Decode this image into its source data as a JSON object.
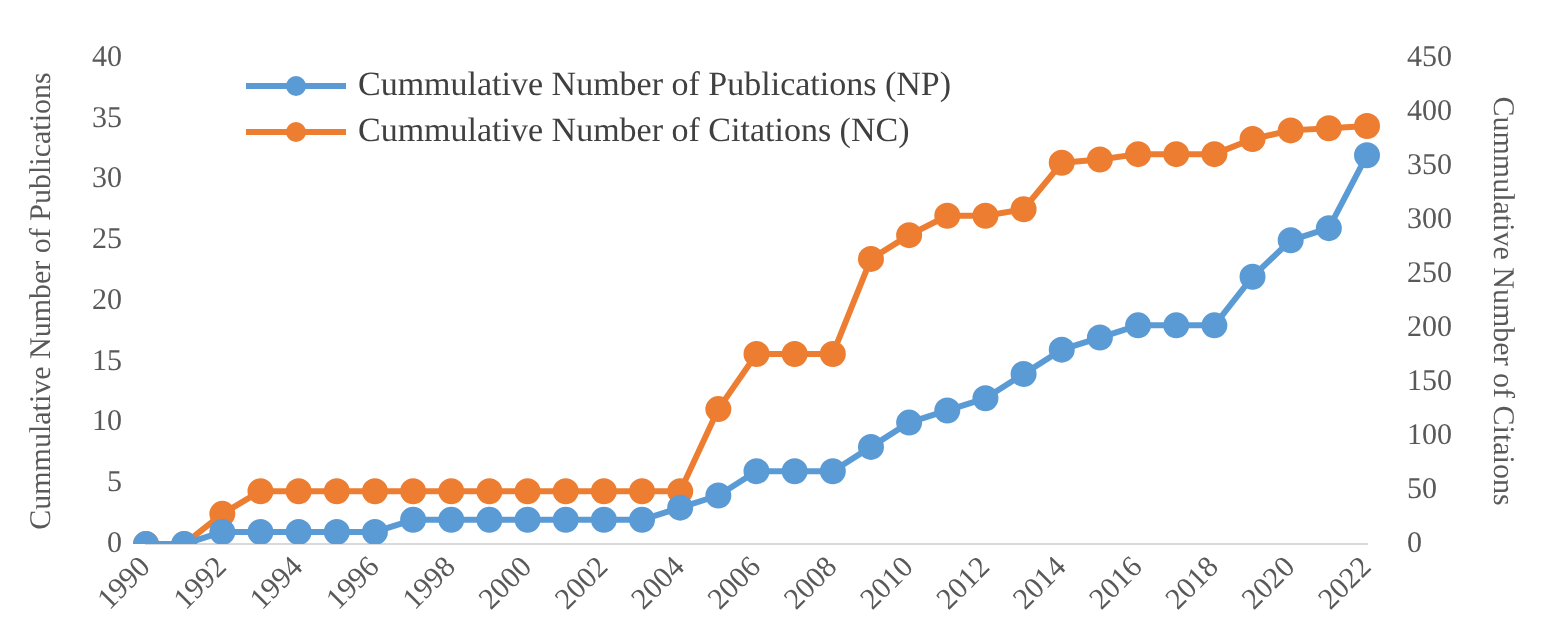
{
  "chart_data": {
    "type": "line",
    "ylabel": "Cummulative Number of Publications",
    "y2label": "Cummulative Number of Citaions",
    "categories": [
      "1990",
      null,
      "1992",
      null,
      "1994",
      null,
      "1996",
      null,
      "1998",
      null,
      "2000",
      null,
      "2002",
      null,
      "2004",
      null,
      "2006",
      null,
      "2008",
      null,
      "2010",
      null,
      "2012",
      null,
      "2014",
      null,
      "2016",
      null,
      "2018",
      null,
      "2020",
      null,
      "2022"
    ],
    "series": [
      {
        "name": "Cummulative Number of Publications (NP)",
        "color": "#5b9bd5",
        "values": [
          0,
          0,
          1,
          1,
          1,
          1,
          1,
          2,
          2,
          2,
          2,
          2,
          2,
          2,
          3,
          4,
          6,
          6,
          6,
          8,
          10,
          11,
          12,
          14,
          16,
          17,
          18,
          18,
          18,
          22,
          25,
          26,
          32
        ]
      },
      {
        "name": "Cummulative Number of Citations (NC)",
        "color": "#ed7d31",
        "axis": "y2",
        "values": [
          0,
          0,
          28,
          49,
          49,
          49,
          49,
          49,
          49,
          49,
          49,
          49,
          49,
          49,
          49,
          125,
          176,
          176,
          176,
          264,
          286,
          304,
          304,
          310,
          353,
          356,
          361,
          361,
          361,
          375,
          383,
          385,
          387
        ]
      }
    ],
    "ylim": [
      0,
      40
    ],
    "yticks": [
      0,
      5,
      10,
      15,
      20,
      25,
      30,
      35,
      40
    ],
    "y2lim": [
      0,
      450
    ],
    "y2ticks": [
      0,
      50,
      100,
      150,
      200,
      250,
      300,
      350,
      400,
      450
    ],
    "grid": false,
    "legend": "top left",
    "marker": "circle",
    "line_style": "solid"
  }
}
